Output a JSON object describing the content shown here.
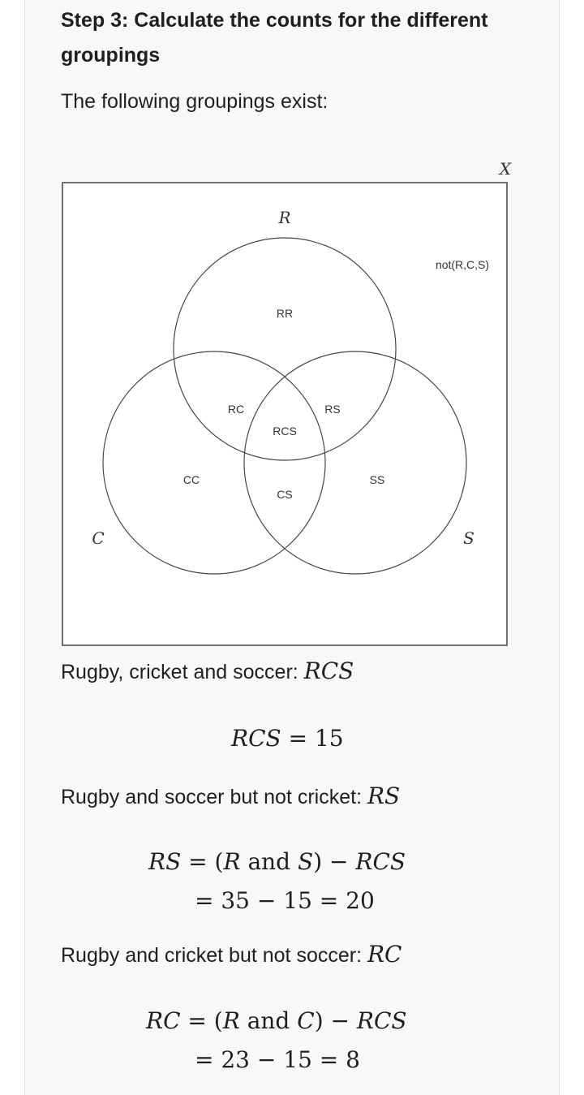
{
  "step": {
    "heading": "Step 3: Calculate the counts for the different groupings",
    "intro": "The following groupings exist:"
  },
  "venn": {
    "set_universe": "X",
    "set_r": "R",
    "set_c": "C",
    "set_s": "S",
    "outside_label": "not(R,C,S)",
    "region_rr": "RR",
    "region_rc": "RC",
    "region_rs": "RS",
    "region_rcs": "RCS",
    "region_cc": "CC",
    "region_cs": "CS",
    "region_ss": "SS"
  },
  "sections": {
    "rcs_text": "Rugby, cricket and soccer: ",
    "rcs_var": "RCS",
    "rcs_eq_lhs": "RCS",
    "rcs_eq_rest": " = 15",
    "rs_text": "Rugby and soccer but not cricket: ",
    "rs_var": "RS",
    "rs_line1_lhs": "RS",
    "rs_line1_mid": " = (",
    "rs_line1_r": "R",
    "rs_line1_and": " and ",
    "rs_line1_s": "S",
    "rs_line1_close": ") − ",
    "rs_line1_rcs": "RCS",
    "rs_line2": "= 35 − 15 = 20",
    "rc_text": "Rugby and cricket but not soccer: ",
    "rc_var": "RC",
    "rc_line1_lhs": "RC",
    "rc_line1_mid": " = (",
    "rc_line1_r": "R",
    "rc_line1_and": " and ",
    "rc_line1_c": "C",
    "rc_line1_close": ") − ",
    "rc_line1_rcs": "RCS",
    "rc_line2": "= 23 − 15 = 8"
  }
}
